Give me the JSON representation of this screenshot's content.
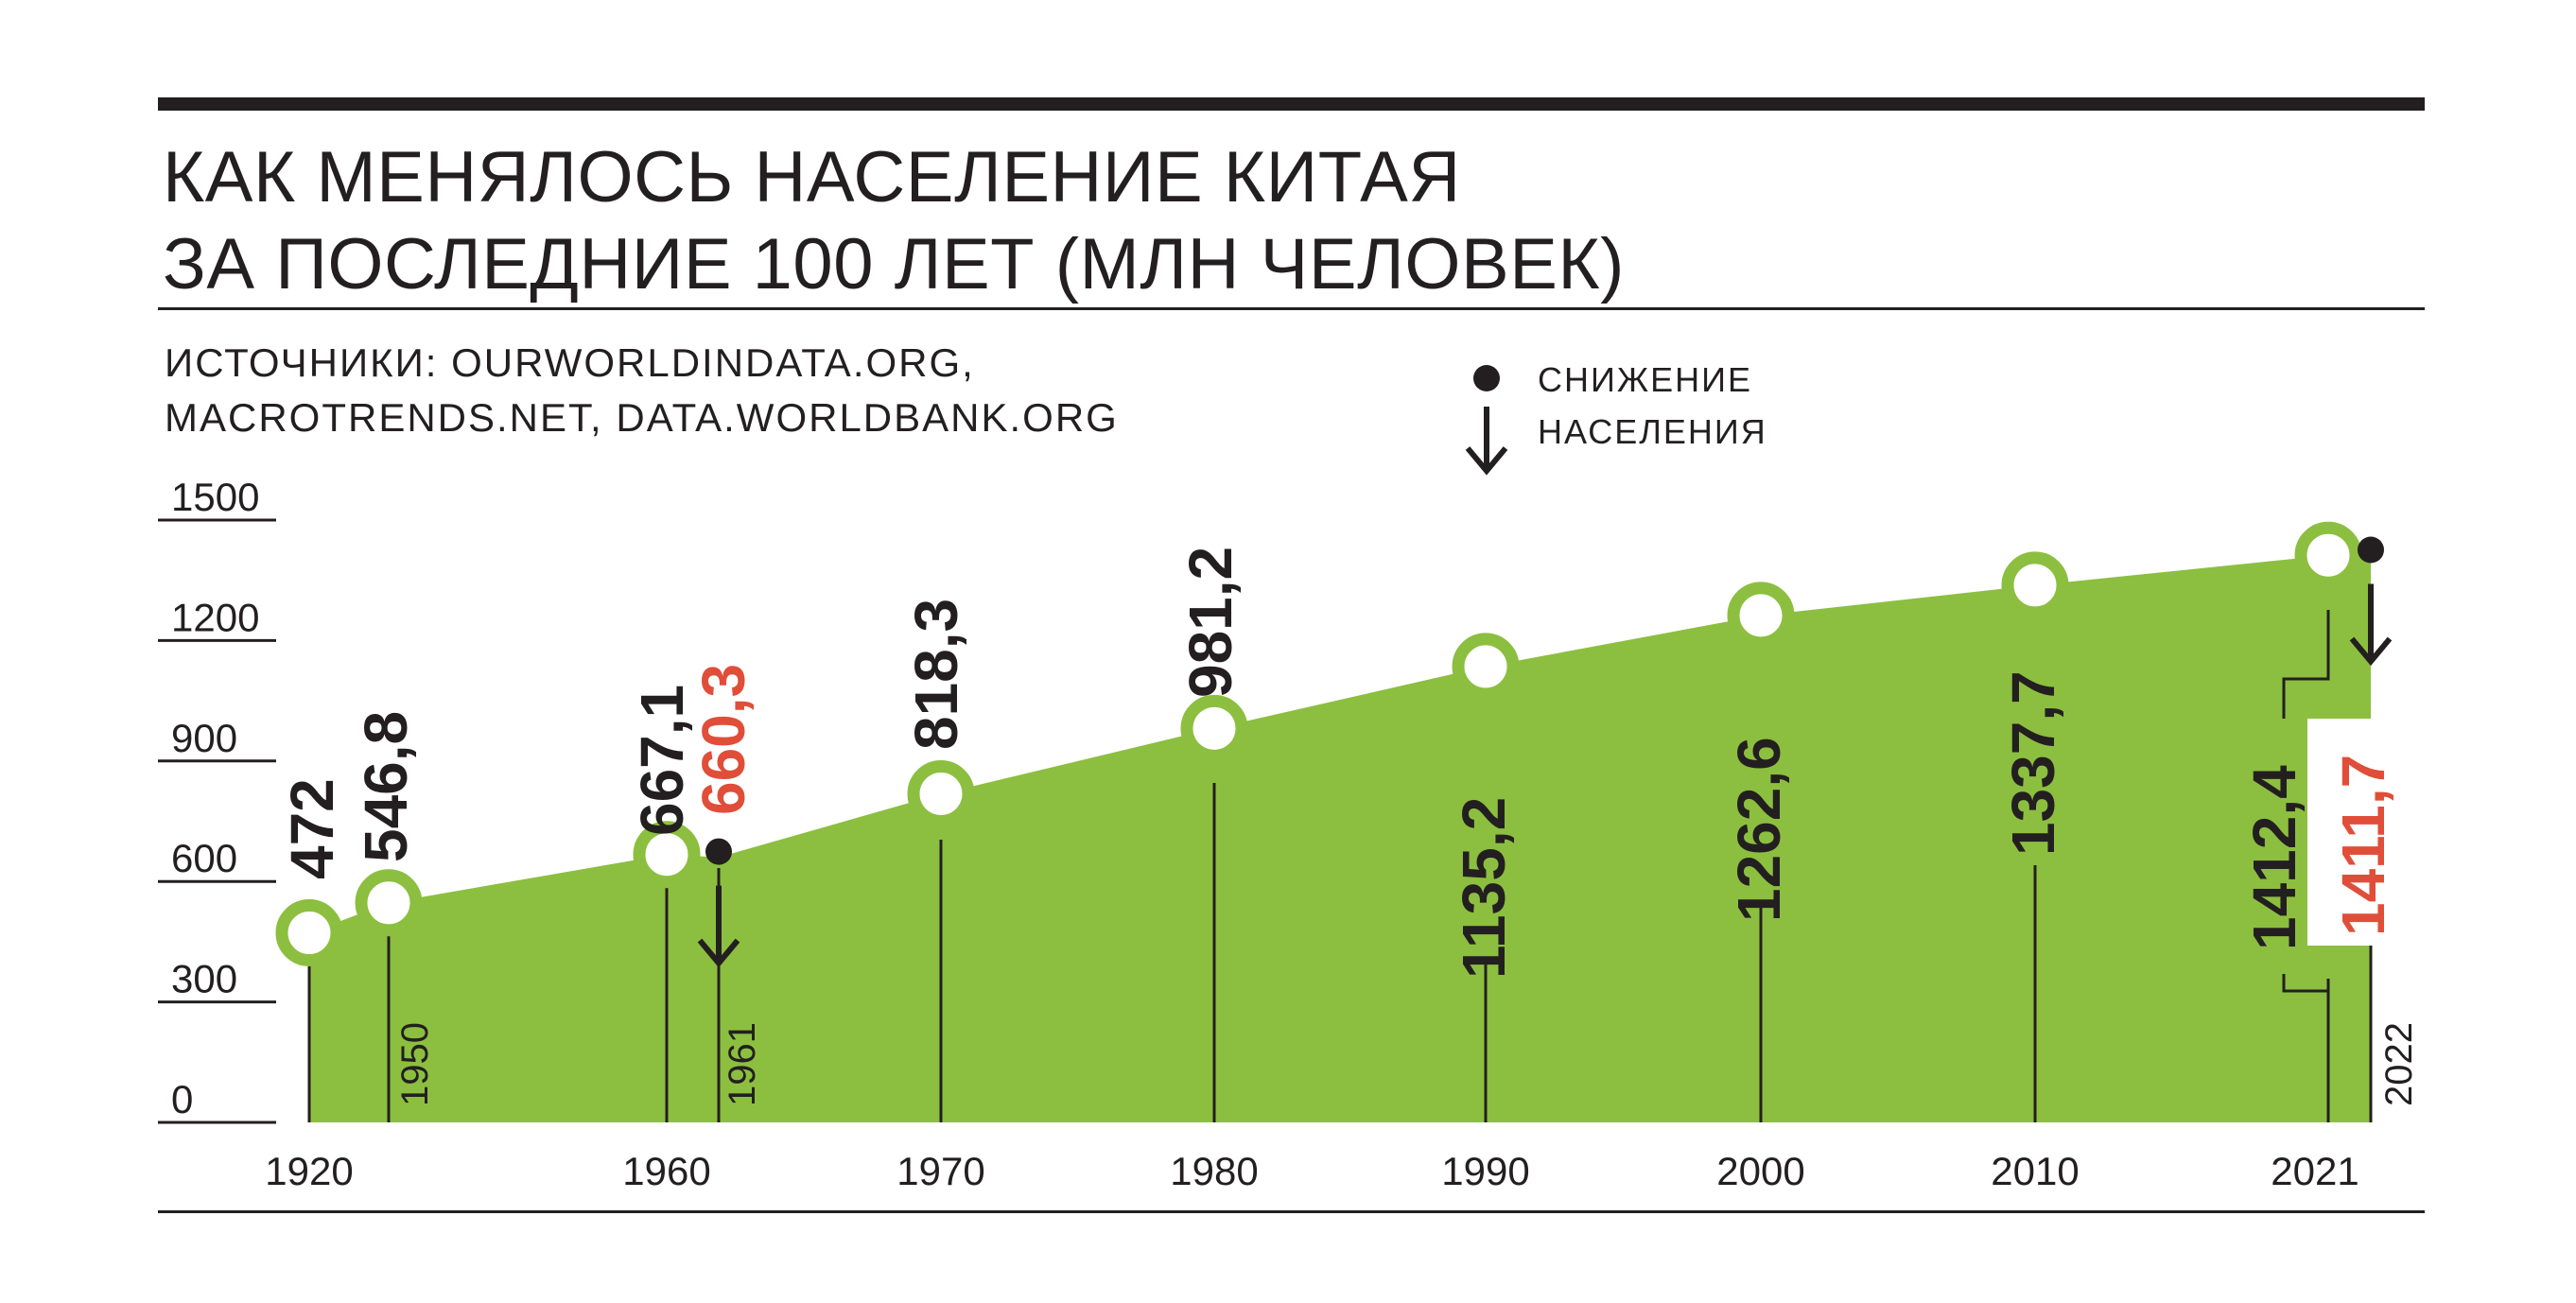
{
  "title": {
    "line1": "КАК МЕНЯЛОСЬ НАСЕЛЕНИЕ КИТАЯ",
    "line2": "ЗА ПОСЛЕДНИЕ 100 ЛЕТ (МЛН ЧЕЛОВЕК)"
  },
  "source": {
    "line1": "ИСТОЧНИКИ: OURWORLDINDATA.ORG,",
    "line2": "MACROTRENDS.NET, DATA.WORLDBANK.ORG"
  },
  "legend": {
    "line1": "СНИЖЕНИЕ",
    "line2": "НАСЕЛЕНИЯ",
    "icon": "decline-arrow-icon"
  },
  "colors": {
    "area": "#8cbf3f",
    "text": "#231f20",
    "decline": "#e04e39",
    "marker_fill": "#ffffff"
  },
  "chart_data": {
    "type": "area",
    "title": "КАК МЕНЯЛОСЬ НАСЕЛЕНИЕ КИТАЯ ЗА ПОСЛЕДНИЕ 100 ЛЕТ (МЛН ЧЕЛОВЕК)",
    "ylim": [
      0,
      1500
    ],
    "yticks": [
      "0",
      "300",
      "600",
      "900",
      "1200",
      "1500"
    ],
    "xticks_bottom": [
      "1920",
      "1960",
      "1970",
      "1980",
      "1990",
      "2000",
      "2010",
      "2021"
    ],
    "grid": false,
    "points": [
      {
        "x": 1920,
        "y": 472,
        "label": "472",
        "year_label": "1920",
        "year_pos": "bottom",
        "decline": false
      },
      {
        "x": 1950,
        "y": 546.8,
        "label": "546,8",
        "year_label": "1950",
        "year_pos": "vertical",
        "decline": false
      },
      {
        "x": 1960,
        "y": 667.1,
        "label": "667,1",
        "year_label": "1960",
        "year_pos": "bottom",
        "decline": false
      },
      {
        "x": 1961,
        "y": 660.3,
        "label": "660,3",
        "year_label": "1961",
        "year_pos": "vertical",
        "decline": true
      },
      {
        "x": 1970,
        "y": 818.3,
        "label": "818,3",
        "year_label": "1970",
        "year_pos": "bottom",
        "decline": false
      },
      {
        "x": 1980,
        "y": 981.2,
        "label": "981,2",
        "year_label": "1980",
        "year_pos": "bottom",
        "decline": false
      },
      {
        "x": 1990,
        "y": 1135.2,
        "label": "1135,2",
        "year_label": "1990",
        "year_pos": "bottom",
        "decline": false
      },
      {
        "x": 2000,
        "y": 1262.6,
        "label": "1262,6",
        "year_label": "2000",
        "year_pos": "bottom",
        "decline": false
      },
      {
        "x": 2010,
        "y": 1337.7,
        "label": "1337,7",
        "year_label": "2010",
        "year_pos": "bottom",
        "decline": false
      },
      {
        "x": 2021,
        "y": 1412.4,
        "label": "1412,4",
        "year_label": "2021",
        "year_pos": "bottom",
        "decline": false
      },
      {
        "x": 2022,
        "y": 1411.7,
        "label": "1411,7",
        "year_label": "2022",
        "year_pos": "vertical",
        "decline": true
      }
    ]
  }
}
